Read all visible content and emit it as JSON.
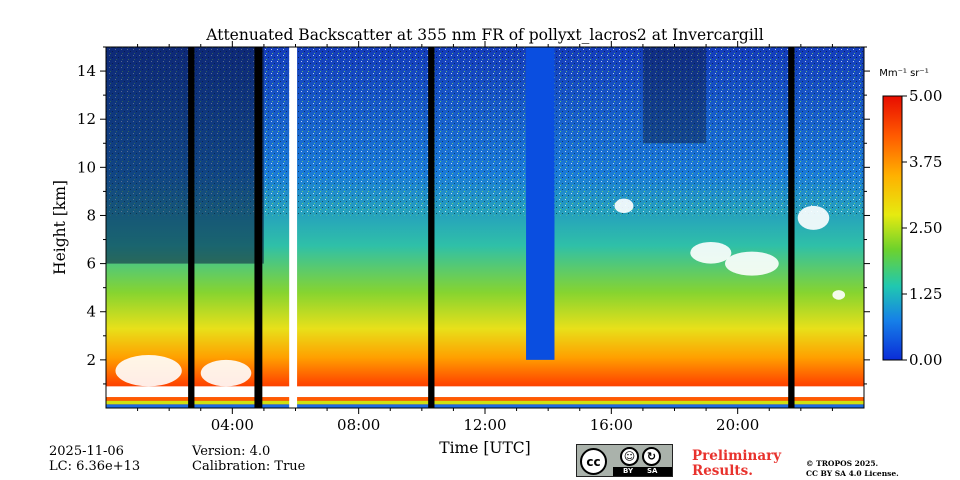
{
  "chart_data": {
    "type": "heatmap",
    "title": "Attenuated Backscatter at 355 nm FR of pollyxt_lacros2 at Invercargill",
    "xlabel": "Time [UTC]",
    "ylabel": "Height [km]",
    "xlim": [
      0,
      24
    ],
    "ylim": [
      0,
      15
    ],
    "x_ticks": [
      4,
      8,
      12,
      16,
      20
    ],
    "x_tick_labels": [
      "04:00",
      "08:00",
      "12:00",
      "16:00",
      "20:00"
    ],
    "y_ticks": [
      2,
      4,
      6,
      8,
      10,
      12,
      14
    ],
    "y_tick_labels": [
      "2",
      "4",
      "6",
      "8",
      "10",
      "12",
      "14"
    ],
    "colorbar": {
      "unit": "Mm⁻¹ sr⁻¹",
      "range": [
        0.0,
        5.0
      ],
      "ticks": [
        0.0,
        1.25,
        2.5,
        3.75,
        5.0
      ],
      "tick_labels": [
        "0.00",
        "1.25",
        "2.50",
        "3.75",
        "5.00"
      ]
    },
    "no_data_periods_utc_hours": [
      [
        2.6,
        2.8
      ],
      [
        4.7,
        4.95
      ],
      [
        10.2,
        10.4
      ],
      [
        21.6,
        21.8
      ]
    ],
    "gap_periods_utc_hours": [
      [
        5.8,
        6.05
      ]
    ],
    "notes": "Strong near-surface backscatter (aerosol layer) below ~2 km, low-level clouds 6-8 km after ~18:30 UTC"
  },
  "footer": {
    "date": "2025-11-06",
    "lc": "LC: 6.36e+13",
    "version": "Version: 4.0",
    "calibration": "Calibration: True",
    "preliminary_line1": "Preliminary",
    "preliminary_line2": "Results.",
    "license_line1": "© TROPOS 2025.",
    "license_line2": "CC BY SA 4.0 License.",
    "cc_badge": {
      "cc": "cc",
      "by": "BY",
      "sa": "SA"
    }
  }
}
